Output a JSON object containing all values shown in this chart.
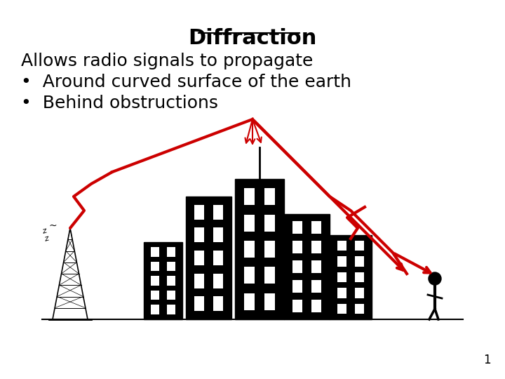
{
  "title": "Diffraction",
  "line1": "Allows radio signals to propagate",
  "bullet1": "Around curved surface of the earth",
  "bullet2": "Behind obstructions",
  "bg_color": "#ffffff",
  "text_color": "#000000",
  "red_color": "#cc0000",
  "title_fontsize": 22,
  "body_fontsize": 18,
  "page_number": "1"
}
